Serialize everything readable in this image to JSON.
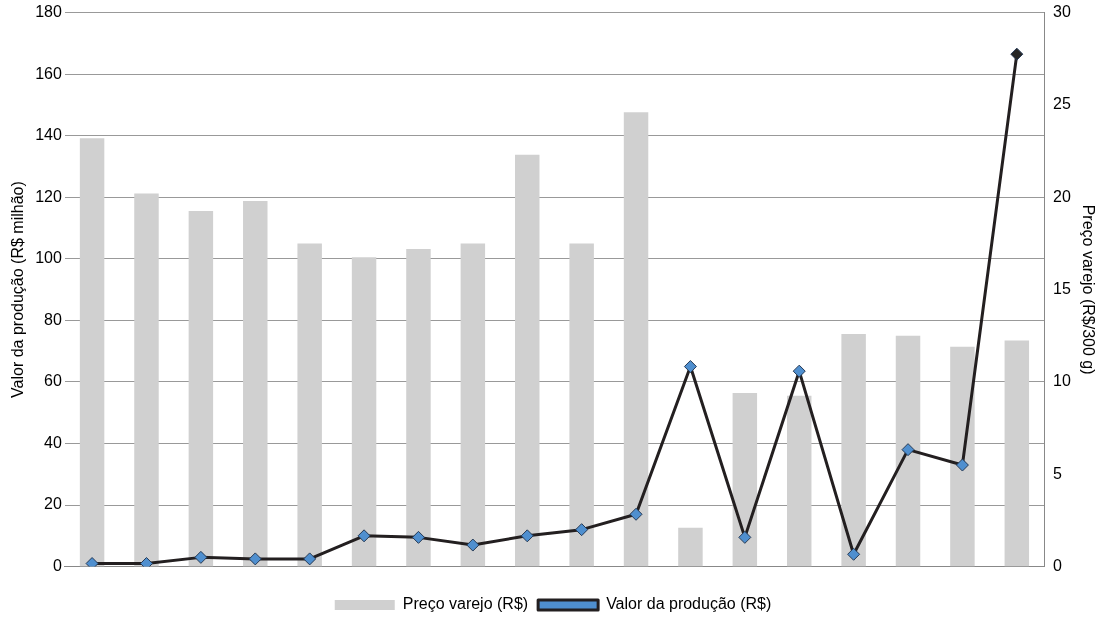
{
  "chart_data": {
    "type": "bar",
    "categories": [
      null,
      null,
      null,
      null,
      null,
      null,
      null,
      null,
      null,
      null,
      null,
      null,
      null,
      null,
      null,
      null,
      null,
      null
    ],
    "series": [
      {
        "name": "Preço varejo (R$)",
        "axis": "y2",
        "color": "#d0d0d0",
        "values": [
          23.2,
          20.2,
          19.25,
          19.8,
          17.5,
          16.75,
          17.2,
          17.5,
          22.3,
          17.5,
          24.6,
          2.1,
          9.4,
          9.25,
          12.6,
          12.5,
          11.9,
          12.25
        ]
      },
      {
        "name": "Valor da produção (R$)",
        "type": "line",
        "color": "#231f20",
        "colors": [
          "#4f8fcf",
          "#4f8fcf",
          "#4f8fcf",
          "#4f8fcf",
          "#4f8fcf",
          "#4f8fcf",
          "#4f8fcf",
          "#4f8fcf",
          "#4f8fcf",
          "#4f8fcf",
          "#4f8fcf",
          "#4f8fcf",
          "#4f8fcf",
          "#4f8fcf",
          "#4f8fcf",
          "#4f8fcf",
          "#4f8fcf",
          "#262626"
        ],
        "values": [
          1,
          1,
          3,
          2.5,
          2.5,
          10,
          9.5,
          7,
          10,
          12,
          17,
          65,
          9.5,
          63.5,
          4,
          38,
          33,
          166.5
        ]
      }
    ],
    "ylabel": "Valor da produção (R$ milhão)",
    "y2label": "Preço varejo (R$/300 g)",
    "ylim": [
      0,
      180
    ],
    "yticks": [
      0,
      20,
      40,
      60,
      80,
      100,
      120,
      140,
      160,
      180
    ],
    "y2lim": [
      0,
      30
    ],
    "y2ticks": [
      0,
      5,
      10,
      15,
      20,
      25,
      30
    ],
    "grid": "y",
    "legend": "bottom",
    "marker": "diamond"
  }
}
